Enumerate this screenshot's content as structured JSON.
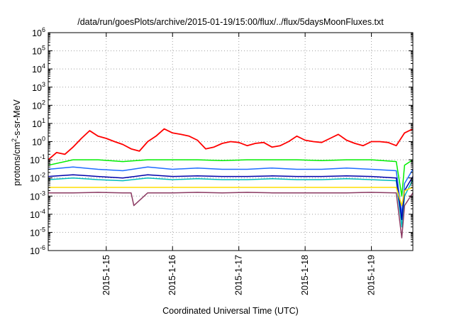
{
  "chart_data": {
    "type": "line",
    "title": "/data/run/goesPlots/archive/2015-01-19/15:00/flux/../flux/5daysMoonFluxes.txt",
    "xlabel": "Coordinated Universal Time (UTC)",
    "ylabel": {
      "prefix": "protons/cm",
      "superscript": "2",
      "suffix": "-s-sr-MeV"
    },
    "x_scale": "time",
    "y_scale": "log",
    "xlim": [
      "2015-01-14T03:00",
      "2015-01-19T15:00"
    ],
    "ylim": [
      1e-06,
      1000000.0
    ],
    "grid": true,
    "x_ticks": [
      {
        "label": "2015-1-15",
        "value": "2015-01-15T00:00"
      },
      {
        "label": "2015-1-16",
        "value": "2015-01-16T00:00"
      },
      {
        "label": "2015-1-17",
        "value": "2015-01-17T00:00"
      },
      {
        "label": "2015-1-18",
        "value": "2015-01-18T00:00"
      },
      {
        "label": "2015-1-19",
        "value": "2015-01-19T00:00"
      }
    ],
    "y_ticks": [
      {
        "base": "10",
        "exp": "-6",
        "value": 1e-06
      },
      {
        "base": "10",
        "exp": "-5",
        "value": 1e-05
      },
      {
        "base": "10",
        "exp": "-4",
        "value": 0.0001
      },
      {
        "base": "10",
        "exp": "-3",
        "value": 0.001
      },
      {
        "base": "10",
        "exp": "-2",
        "value": 0.01
      },
      {
        "base": "10",
        "exp": "-1",
        "value": 0.1
      },
      {
        "base": "10",
        "exp": "0",
        "value": 1
      },
      {
        "base": "10",
        "exp": "1",
        "value": 10
      },
      {
        "base": "10",
        "exp": "2",
        "value": 100
      },
      {
        "base": "10",
        "exp": "3",
        "value": 1000
      },
      {
        "base": "10",
        "exp": "4",
        "value": 10000
      },
      {
        "base": "10",
        "exp": "5",
        "value": 100000
      },
      {
        "base": "10",
        "exp": "6",
        "value": 1000000
      }
    ],
    "series": [
      {
        "color": "#ff0000",
        "x": [
          "2015-01-14T03:00",
          "2015-01-14T06:00",
          "2015-01-14T09:00",
          "2015-01-14T12:00",
          "2015-01-14T15:00",
          "2015-01-14T18:00",
          "2015-01-14T21:00",
          "2015-01-15T00:00",
          "2015-01-15T03:00",
          "2015-01-15T06:00",
          "2015-01-15T09:00",
          "2015-01-15T12:00",
          "2015-01-15T15:00",
          "2015-01-15T18:00",
          "2015-01-15T21:00",
          "2015-01-16T00:00",
          "2015-01-16T03:00",
          "2015-01-16T06:00",
          "2015-01-16T09:00",
          "2015-01-16T12:00",
          "2015-01-16T15:00",
          "2015-01-16T18:00",
          "2015-01-16T21:00",
          "2015-01-17T00:00",
          "2015-01-17T03:00",
          "2015-01-17T06:00",
          "2015-01-17T09:00",
          "2015-01-17T12:00",
          "2015-01-17T15:00",
          "2015-01-17T18:00",
          "2015-01-17T21:00",
          "2015-01-18T00:00",
          "2015-01-18T03:00",
          "2015-01-18T06:00",
          "2015-01-18T09:00",
          "2015-01-18T12:00",
          "2015-01-18T15:00",
          "2015-01-18T18:00",
          "2015-01-18T21:00",
          "2015-01-19T00:00",
          "2015-01-19T03:00",
          "2015-01-19T06:00",
          "2015-01-19T09:00",
          "2015-01-19T12:00",
          "2015-01-19T15:00"
        ],
        "values": [
          0.1,
          0.25,
          0.2,
          0.5,
          1.5,
          4,
          2,
          1.5,
          1,
          0.7,
          0.4,
          0.3,
          1,
          2,
          5,
          3,
          2.5,
          2,
          1.2,
          0.4,
          0.5,
          0.8,
          1,
          0.9,
          0.6,
          0.8,
          0.9,
          0.5,
          0.6,
          1,
          2,
          1.2,
          1,
          0.9,
          1.5,
          2.5,
          1.2,
          0.8,
          0.6,
          1,
          1,
          0.9,
          0.6,
          3,
          5
        ]
      },
      {
        "color": "#00ee00",
        "x": [
          "2015-01-14T03:00",
          "2015-01-14T12:00",
          "2015-01-14T21:00",
          "2015-01-15T06:00",
          "2015-01-15T15:00",
          "2015-01-16T00:00",
          "2015-01-16T09:00",
          "2015-01-16T18:00",
          "2015-01-17T03:00",
          "2015-01-17T12:00",
          "2015-01-17T21:00",
          "2015-01-18T06:00",
          "2015-01-18T15:00",
          "2015-01-19T00:00",
          "2015-01-19T09:00",
          "2015-01-19T11:00",
          "2015-01-19T12:00",
          "2015-01-19T15:00"
        ],
        "values": [
          0.05,
          0.1,
          0.1,
          0.08,
          0.1,
          0.1,
          0.1,
          0.09,
          0.1,
          0.1,
          0.1,
          0.09,
          0.1,
          0.1,
          0.08,
          0.001,
          0.05,
          0.1
        ]
      },
      {
        "color": "#00bbbb",
        "x": [
          "2015-01-14T03:00",
          "2015-01-14T12:00",
          "2015-01-14T21:00",
          "2015-01-15T06:00",
          "2015-01-15T15:00",
          "2015-01-16T00:00",
          "2015-01-16T09:00",
          "2015-01-16T18:00",
          "2015-01-17T03:00",
          "2015-01-17T12:00",
          "2015-01-17T21:00",
          "2015-01-18T06:00",
          "2015-01-18T15:00",
          "2015-01-19T00:00",
          "2015-01-19T09:00",
          "2015-01-19T11:00",
          "2015-01-19T12:00",
          "2015-01-19T15:00"
        ],
        "values": [
          0.008,
          0.01,
          0.008,
          0.007,
          0.01,
          0.008,
          0.009,
          0.008,
          0.008,
          0.009,
          0.008,
          0.008,
          0.009,
          0.008,
          0.007,
          2e-05,
          0.001,
          0.008
        ]
      },
      {
        "color": "#1e6bff",
        "x": [
          "2015-01-14T03:00",
          "2015-01-14T12:00",
          "2015-01-14T21:00",
          "2015-01-15T06:00",
          "2015-01-15T15:00",
          "2015-01-16T00:00",
          "2015-01-16T09:00",
          "2015-01-16T18:00",
          "2015-01-17T03:00",
          "2015-01-17T12:00",
          "2015-01-17T21:00",
          "2015-01-18T06:00",
          "2015-01-18T15:00",
          "2015-01-19T00:00",
          "2015-01-19T09:00",
          "2015-01-19T11:00",
          "2015-01-19T12:00",
          "2015-01-19T15:00"
        ],
        "values": [
          0.03,
          0.04,
          0.03,
          0.025,
          0.04,
          0.03,
          0.035,
          0.03,
          0.03,
          0.035,
          0.03,
          0.03,
          0.035,
          0.03,
          0.025,
          0.0001,
          0.005,
          0.03
        ]
      },
      {
        "color": "#0000aa",
        "x": [
          "2015-01-14T03:00",
          "2015-01-14T12:00",
          "2015-01-14T21:00",
          "2015-01-15T06:00",
          "2015-01-15T15:00",
          "2015-01-16T00:00",
          "2015-01-16T09:00",
          "2015-01-16T18:00",
          "2015-01-17T03:00",
          "2015-01-17T12:00",
          "2015-01-17T21:00",
          "2015-01-18T06:00",
          "2015-01-18T15:00",
          "2015-01-19T00:00",
          "2015-01-19T09:00",
          "2015-01-19T11:00",
          "2015-01-19T12:00",
          "2015-01-19T15:00"
        ],
        "values": [
          0.012,
          0.015,
          0.012,
          0.01,
          0.015,
          0.012,
          0.013,
          0.012,
          0.012,
          0.013,
          0.012,
          0.012,
          0.013,
          0.012,
          0.01,
          5e-05,
          0.002,
          0.012
        ]
      },
      {
        "color": "#ffdd00",
        "x": [
          "2015-01-14T03:00",
          "2015-01-14T12:00",
          "2015-01-14T21:00",
          "2015-01-15T06:00",
          "2015-01-15T15:00",
          "2015-01-16T00:00",
          "2015-01-16T09:00",
          "2015-01-16T18:00",
          "2015-01-17T03:00",
          "2015-01-17T12:00",
          "2015-01-17T21:00",
          "2015-01-18T06:00",
          "2015-01-18T15:00",
          "2015-01-19T00:00",
          "2015-01-19T09:00",
          "2015-01-19T11:00",
          "2015-01-19T12:00",
          "2015-01-19T15:00"
        ],
        "values": [
          0.003,
          0.003,
          0.003,
          0.003,
          0.003,
          0.003,
          0.003,
          0.003,
          0.003,
          0.003,
          0.003,
          0.003,
          0.003,
          0.003,
          0.003,
          0.0003,
          0.002,
          0.003
        ]
      },
      {
        "color": "#8b3a62",
        "x": [
          "2015-01-14T03:00",
          "2015-01-14T12:00",
          "2015-01-14T21:00",
          "2015-01-15T06:00",
          "2015-01-15T09:00",
          "2015-01-15T10:00",
          "2015-01-15T15:00",
          "2015-01-16T00:00",
          "2015-01-16T09:00",
          "2015-01-16T18:00",
          "2015-01-17T03:00",
          "2015-01-17T12:00",
          "2015-01-17T21:00",
          "2015-01-18T06:00",
          "2015-01-18T15:00",
          "2015-01-19T00:00",
          "2015-01-19T09:00",
          "2015-01-19T11:00",
          "2015-01-19T12:00",
          "2015-01-19T15:00"
        ],
        "values": [
          0.0015,
          0.0015,
          0.0016,
          0.0015,
          0.0015,
          0.0003,
          0.0015,
          0.0015,
          0.0016,
          0.0015,
          0.0016,
          0.0015,
          0.0015,
          0.0015,
          0.0015,
          0.0016,
          0.0015,
          5e-06,
          0.0003,
          0.0015
        ]
      }
    ]
  }
}
